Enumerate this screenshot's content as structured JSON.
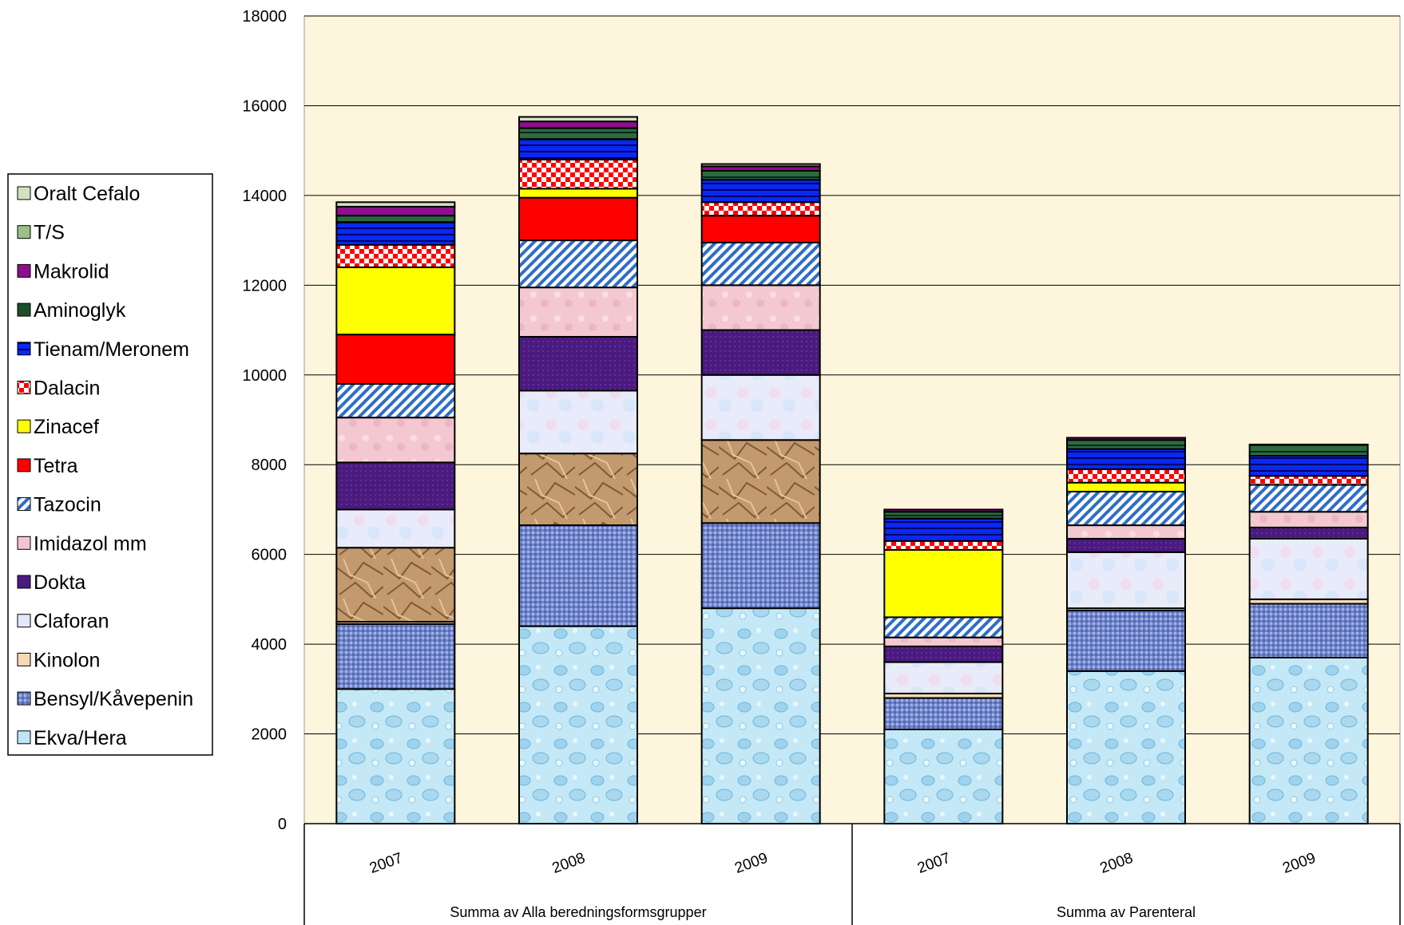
{
  "chart_data": {
    "type": "bar",
    "stacked": true,
    "title": "",
    "xlabel": "",
    "ylabel": "",
    "ylim": [
      0,
      18000
    ],
    "yticks": [
      0,
      2000,
      4000,
      6000,
      8000,
      10000,
      12000,
      14000,
      16000,
      18000
    ],
    "grid": true,
    "legend_position": "left",
    "groups": [
      "Summa av Alla beredningsformsgrupper",
      "Summa av Parenteral"
    ],
    "categories": [
      "2007",
      "2008",
      "2009",
      "2007",
      "2008",
      "2009"
    ],
    "category_group": [
      0,
      0,
      0,
      1,
      1,
      1
    ],
    "series": [
      {
        "name": "Ekva/Hera",
        "color": "#bfe6f5",
        "pattern": "drops",
        "values": [
          3000,
          4400,
          4800,
          2100,
          3400,
          3700
        ]
      },
      {
        "name": "Bensyl/Kåvepenin",
        "color": "#7b8fd1",
        "pattern": "weave",
        "values": [
          1450,
          2250,
          1900,
          700,
          1350,
          1200
        ]
      },
      {
        "name": "Kinolon",
        "color": "#f5d9b3",
        "pattern": "solid",
        "values": [
          50,
          0,
          0,
          100,
          50,
          100
        ]
      },
      {
        "name": "Claforan",
        "color": "#c9b56f",
        "pattern": "crumple",
        "values": [
          1650,
          1600,
          1850,
          0,
          0,
          0
        ]
      },
      {
        "name": "Claforan",
        "color": "#e4e8f8",
        "pattern": "marble",
        "values": [
          850,
          1400,
          1450,
          700,
          1250,
          1350
        ]
      },
      {
        "name": "Dokta",
        "color": "#4b1a7f",
        "pattern": "dots",
        "values": [
          1050,
          1200,
          1000,
          350,
          300,
          250
        ]
      },
      {
        "name": "Imidazol mm",
        "color": "#f3c6cf",
        "pattern": "speckle",
        "values": [
          1000,
          1100,
          1000,
          200,
          300,
          350
        ]
      },
      {
        "name": "Tazocin",
        "color": "#3d7fd6",
        "pattern": "diag",
        "values": [
          750,
          1050,
          950,
          450,
          750,
          600
        ]
      },
      {
        "name": "Tetra",
        "color": "#ff0000",
        "pattern": "solid",
        "values": [
          1100,
          950,
          600,
          0,
          0,
          0
        ]
      },
      {
        "name": "Zinacef",
        "color": "#ffff00",
        "pattern": "solid",
        "values": [
          1500,
          200,
          0,
          1500,
          200,
          0
        ]
      },
      {
        "name": "Dalacin",
        "color": "#ff0000",
        "pattern": "checker",
        "values": [
          500,
          650,
          300,
          200,
          300,
          200
        ]
      },
      {
        "name": "Tienam/Meronem",
        "color": "#0a28f0",
        "pattern": "hstripe",
        "values": [
          500,
          450,
          500,
          500,
          450,
          450
        ]
      },
      {
        "name": "Aminoglyk",
        "color": "#1e4d2e",
        "pattern": "hstripe-dark",
        "values": [
          150,
          250,
          200,
          150,
          200,
          250
        ]
      },
      {
        "name": "Makrolid",
        "color": "#8e0f8e",
        "pattern": "solid",
        "values": [
          200,
          150,
          100,
          50,
          50,
          0
        ]
      },
      {
        "name": "T/S",
        "color": "#9ac08a",
        "pattern": "solid",
        "values": [
          0,
          0,
          0,
          0,
          0,
          0
        ]
      },
      {
        "name": "Oralt Cefalo",
        "color": "#d3e1c1",
        "pattern": "solid",
        "values": [
          100,
          100,
          50,
          0,
          0,
          0
        ]
      }
    ]
  },
  "legend": {
    "items": [
      {
        "label": "Oralt Cefalo",
        "color": "#d3e1c1",
        "pattern": "solid"
      },
      {
        "label": "T/S",
        "color": "#9ac08a",
        "pattern": "solid"
      },
      {
        "label": "Makrolid",
        "color": "#8e0f8e",
        "pattern": "solid"
      },
      {
        "label": "Aminoglyk",
        "color": "#1e4d2e",
        "pattern": "solid"
      },
      {
        "label": "Tienam/Meronem",
        "color": "#0a28f0",
        "pattern": "hstripe"
      },
      {
        "label": "Dalacin",
        "color": "#ff0000",
        "pattern": "checker"
      },
      {
        "label": "Zinacef",
        "color": "#ffff00",
        "pattern": "solid"
      },
      {
        "label": "Tetra",
        "color": "#ff0000",
        "pattern": "solid"
      },
      {
        "label": "Tazocin",
        "color": "#3d7fd6",
        "pattern": "diag"
      },
      {
        "label": "Imidazol mm",
        "color": "#f3c6cf",
        "pattern": "solid"
      },
      {
        "label": "Dokta",
        "color": "#4b1a7f",
        "pattern": "solid"
      },
      {
        "label": "Claforan",
        "color": "#e4e8f8",
        "pattern": "solid"
      },
      {
        "label": "Kinolon",
        "color": "#f5d9b3",
        "pattern": "solid"
      },
      {
        "label": "Bensyl/Kåvepenin",
        "color": "#7b8fd1",
        "pattern": "weave"
      },
      {
        "label": "Ekva/Hera",
        "color": "#bfe6f5",
        "pattern": "solid"
      }
    ]
  },
  "colors": {
    "plot_background": "#fdf6dc",
    "gridline": "#000000"
  }
}
